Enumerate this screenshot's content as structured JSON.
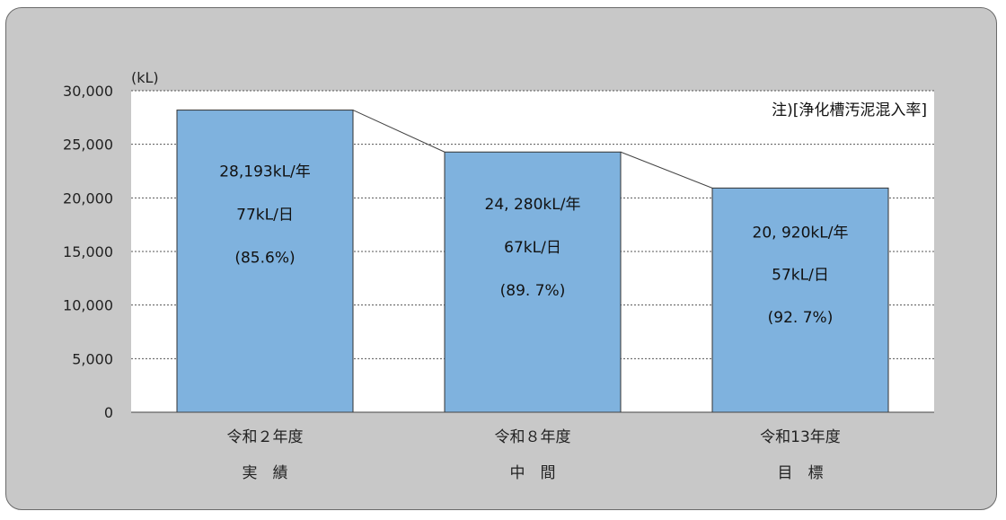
{
  "chart_data": {
    "type": "bar",
    "unit_label": "(kL)",
    "note": "注)[浄化槽汚泥混入率]",
    "ylim": [
      0,
      30000
    ],
    "y_ticks": [
      0,
      5000,
      10000,
      15000,
      20000,
      25000,
      30000
    ],
    "y_tick_labels": [
      "0",
      "5,000",
      "10,000",
      "15,000",
      "20,000",
      "25,000",
      "30,000"
    ],
    "grid": true,
    "grid_style": "dotted",
    "connector_lines": true,
    "bar_color": "#7fb2de",
    "bar_border_color": "#333333",
    "categories": [
      "令和２年度",
      "令和８年度",
      "令和13年度"
    ],
    "category_sublabels": [
      "実　績",
      "中　間",
      "目　標"
    ],
    "values": [
      28193,
      24280,
      20920
    ],
    "data_labels": [
      [
        "28,193kL/年",
        "77kL/日",
        "(85.6%)"
      ],
      [
        "24, 280kL/年",
        "67kL/日",
        "(89. 7%)"
      ],
      [
        "20, 920kL/年",
        "57kL/日",
        "(92. 7%)"
      ]
    ]
  }
}
